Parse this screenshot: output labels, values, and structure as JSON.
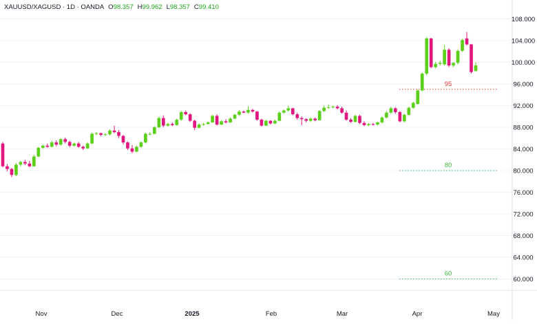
{
  "legend": {
    "symbol": "XAUUSD/XAGUSD · 1D · OANDA",
    "open_label": "O",
    "open": "98.357",
    "high_label": "H",
    "high": "99.962",
    "low_label": "L",
    "low": "98.357",
    "close_label": "C",
    "close": "99.410"
  },
  "colors": {
    "up": "#5ccf1a",
    "down": "#e0177f",
    "line_95": "#e33b3b",
    "line_80": "#38b53b",
    "line_60": "#38b53b"
  },
  "chart_data": {
    "type": "candlestick",
    "y_ticks": [
      "108.000",
      "104.000",
      "100.000",
      "96.000",
      "92.000",
      "88.000",
      "84.000",
      "80.000",
      "76.000",
      "72.000",
      "68.000",
      "64.000",
      "60.000"
    ],
    "ylim": [
      58.5,
      109.5
    ],
    "x_ticks": [
      {
        "label": "Nov",
        "bold": false
      },
      {
        "label": "Dec",
        "bold": false
      },
      {
        "label": "2025",
        "bold": true
      },
      {
        "label": "Feb",
        "bold": false
      },
      {
        "label": "Mar",
        "bold": false
      },
      {
        "label": "Apr",
        "bold": false
      },
      {
        "label": "May",
        "bold": false
      }
    ],
    "horizontal_lines": [
      {
        "value": 95,
        "label": "95",
        "style": "dotted",
        "color": "red"
      },
      {
        "value": 80,
        "label": "80",
        "style": "dotted",
        "color": "green"
      },
      {
        "value": 60,
        "label": "60",
        "style": "dotted",
        "color": "green"
      }
    ],
    "candles": [
      [
        85.0,
        85.3,
        80.6,
        80.8
      ],
      [
        80.8,
        81.2,
        79.9,
        80.3
      ],
      [
        80.3,
        80.5,
        78.8,
        79.2
      ],
      [
        79.2,
        81.4,
        79.0,
        81.1
      ],
      [
        81.1,
        81.8,
        80.8,
        81.6
      ],
      [
        81.6,
        82.0,
        81.0,
        81.3
      ],
      [
        81.3,
        81.8,
        80.6,
        80.8
      ],
      [
        80.8,
        82.9,
        80.7,
        82.6
      ],
      [
        82.6,
        84.4,
        82.5,
        84.2
      ],
      [
        84.2,
        84.8,
        84.0,
        84.6
      ],
      [
        84.6,
        85.0,
        84.2,
        84.4
      ],
      [
        84.4,
        85.5,
        84.3,
        85.2
      ],
      [
        85.2,
        85.6,
        84.5,
        84.8
      ],
      [
        84.8,
        86.0,
        84.6,
        85.8
      ],
      [
        85.8,
        86.1,
        85.0,
        85.3
      ],
      [
        85.3,
        85.5,
        84.3,
        84.6
      ],
      [
        84.6,
        85.2,
        84.4,
        85.0
      ],
      [
        85.0,
        85.3,
        84.2,
        84.4
      ],
      [
        84.4,
        84.6,
        83.8,
        84.1
      ],
      [
        84.1,
        85.2,
        84.0,
        85.0
      ],
      [
        85.0,
        87.0,
        84.9,
        86.8
      ],
      [
        86.8,
        87.1,
        86.5,
        86.9
      ],
      [
        86.9,
        87.0,
        86.3,
        86.6
      ],
      [
        86.6,
        86.9,
        86.4,
        86.7
      ],
      [
        86.7,
        87.6,
        86.5,
        87.4
      ],
      [
        87.4,
        88.3,
        86.9,
        87.1
      ],
      [
        87.1,
        87.5,
        86.0,
        86.4
      ],
      [
        86.4,
        86.6,
        84.8,
        85.2
      ],
      [
        85.2,
        85.4,
        83.8,
        84.1
      ],
      [
        84.1,
        84.7,
        83.2,
        83.5
      ],
      [
        83.5,
        84.6,
        83.4,
        84.4
      ],
      [
        84.4,
        85.4,
        84.2,
        85.2
      ],
      [
        85.2,
        87.0,
        85.0,
        86.8
      ],
      [
        86.8,
        87.1,
        86.5,
        86.8
      ],
      [
        86.8,
        88.2,
        86.7,
        88.0
      ],
      [
        88.0,
        90.0,
        87.8,
        89.7
      ],
      [
        89.7,
        90.2,
        88.0,
        88.3
      ],
      [
        88.3,
        88.8,
        88.1,
        88.6
      ],
      [
        88.6,
        88.9,
        88.2,
        88.4
      ],
      [
        88.4,
        89.6,
        88.3,
        89.4
      ],
      [
        89.4,
        91.0,
        89.2,
        90.8
      ],
      [
        90.8,
        91.1,
        90.2,
        90.4
      ],
      [
        90.4,
        90.6,
        89.0,
        89.2
      ],
      [
        89.2,
        89.4,
        87.5,
        87.9
      ],
      [
        87.9,
        88.7,
        87.8,
        88.5
      ],
      [
        88.5,
        88.8,
        88.3,
        88.6
      ],
      [
        88.6,
        89.1,
        88.5,
        88.9
      ],
      [
        88.9,
        90.3,
        88.8,
        90.1
      ],
      [
        90.1,
        90.4,
        88.3,
        88.5
      ],
      [
        88.5,
        89.3,
        88.4,
        89.1
      ],
      [
        89.1,
        89.5,
        88.7,
        88.9
      ],
      [
        88.9,
        89.8,
        88.8,
        89.6
      ],
      [
        89.6,
        90.5,
        89.5,
        90.3
      ],
      [
        90.3,
        91.2,
        90.1,
        90.9
      ],
      [
        90.9,
        91.1,
        90.6,
        90.7
      ],
      [
        90.7,
        91.9,
        90.5,
        91.2
      ],
      [
        91.2,
        91.4,
        90.7,
        90.9
      ],
      [
        90.9,
        91.0,
        89.2,
        89.4
      ],
      [
        89.4,
        89.6,
        88.1,
        88.3
      ],
      [
        88.3,
        89.4,
        88.2,
        89.2
      ],
      [
        89.2,
        89.3,
        88.5,
        88.7
      ],
      [
        88.7,
        89.4,
        88.6,
        89.2
      ],
      [
        89.2,
        90.9,
        89.1,
        90.7
      ],
      [
        90.7,
        91.3,
        90.5,
        91.1
      ],
      [
        91.1,
        92.0,
        90.9,
        91.5
      ],
      [
        91.5,
        91.6,
        90.2,
        90.4
      ],
      [
        90.4,
        90.7,
        89.4,
        89.7
      ],
      [
        89.7,
        90.0,
        88.4,
        89.5
      ],
      [
        89.5,
        89.7,
        88.9,
        89.2
      ],
      [
        89.2,
        89.8,
        89.0,
        89.6
      ],
      [
        89.6,
        89.8,
        89.1,
        89.3
      ],
      [
        89.3,
        91.2,
        89.2,
        91.0
      ],
      [
        91.0,
        92.0,
        90.8,
        91.6
      ],
      [
        91.6,
        92.2,
        91.4,
        91.7
      ],
      [
        91.7,
        92.0,
        91.5,
        91.8
      ],
      [
        91.8,
        92.1,
        91.3,
        91.5
      ],
      [
        91.5,
        91.8,
        90.5,
        90.7
      ],
      [
        90.7,
        91.1,
        89.2,
        89.4
      ],
      [
        89.4,
        89.7,
        88.8,
        89.0
      ],
      [
        89.0,
        90.3,
        88.9,
        90.1
      ],
      [
        90.1,
        90.3,
        88.6,
        88.8
      ],
      [
        88.8,
        89.1,
        88.2,
        88.4
      ],
      [
        88.4,
        88.8,
        88.2,
        88.6
      ],
      [
        88.6,
        88.8,
        88.3,
        88.5
      ],
      [
        88.5,
        89.0,
        88.3,
        88.9
      ],
      [
        88.9,
        90.0,
        88.7,
        89.8
      ],
      [
        89.8,
        91.0,
        89.6,
        90.7
      ],
      [
        90.7,
        91.8,
        90.5,
        91.5
      ],
      [
        91.5,
        91.7,
        90.5,
        90.8
      ],
      [
        90.8,
        91.0,
        88.9,
        89.1
      ],
      [
        89.1,
        90.5,
        88.9,
        90.3
      ],
      [
        90.3,
        91.8,
        90.1,
        91.6
      ],
      [
        91.6,
        92.7,
        91.4,
        92.5
      ],
      [
        92.3,
        95.0,
        92.2,
        94.8
      ],
      [
        94.8,
        98.1,
        94.6,
        97.9
      ],
      [
        97.9,
        104.6,
        97.6,
        104.4
      ],
      [
        104.4,
        104.5,
        98.9,
        99.1
      ],
      [
        99.1,
        100.1,
        98.9,
        99.7
      ],
      [
        99.7,
        100.3,
        99.4,
        99.9
      ],
      [
        99.6,
        103.2,
        99.4,
        102.3
      ],
      [
        102.3,
        102.6,
        99.1,
        99.4
      ],
      [
        99.4,
        100.0,
        99.1,
        99.9
      ],
      [
        99.9,
        102.4,
        99.6,
        102.1
      ],
      [
        102.1,
        104.3,
        101.9,
        104.1
      ],
      [
        104.4,
        105.6,
        103.1,
        103.3
      ],
      [
        103.3,
        103.4,
        97.9,
        98.2
      ],
      [
        98.357,
        99.962,
        98.357,
        99.41
      ]
    ]
  }
}
